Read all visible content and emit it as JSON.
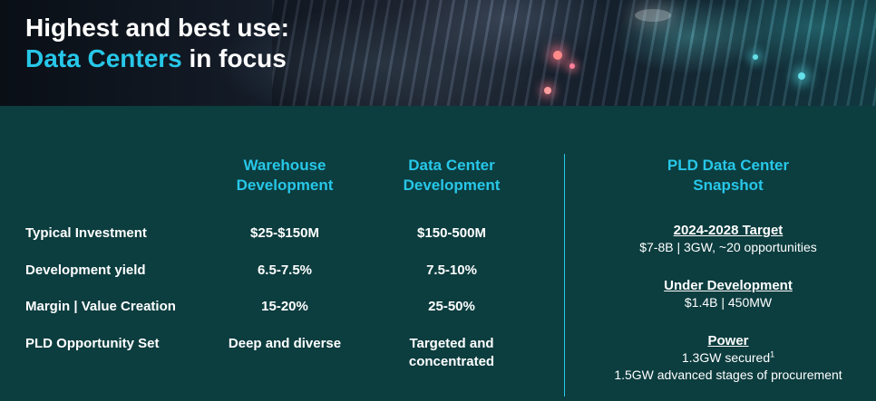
{
  "header": {
    "title_line1": "Highest and best use:",
    "title_accent": "Data Centers",
    "title_rest": " in focus"
  },
  "columns": {
    "warehouse": [
      "Warehouse",
      "Development"
    ],
    "datacenter": [
      "Data Center",
      "Development"
    ]
  },
  "rows": [
    {
      "label": "Typical Investment",
      "warehouse": [
        "$25-$150M"
      ],
      "datacenter": [
        "$150-500M"
      ]
    },
    {
      "label": "Development yield",
      "warehouse": [
        "6.5-7.5%"
      ],
      "datacenter": [
        "7.5-10%"
      ]
    },
    {
      "label": "Margin | Value Creation",
      "warehouse": [
        "15-20%"
      ],
      "datacenter": [
        "25-50%"
      ]
    },
    {
      "label": "PLD Opportunity Set",
      "warehouse": [
        "Deep and diverse"
      ],
      "datacenter": [
        "Targeted and",
        "concentrated"
      ]
    }
  ],
  "snapshot": {
    "title": [
      "PLD Data Center",
      "Snapshot"
    ],
    "target": {
      "head": "2024-2028 Target",
      "line": "$7-8B | 3GW, ~20 opportunities"
    },
    "under_development": {
      "head": "Under Development",
      "line": "$1.4B | 450MW"
    },
    "power": {
      "head": "Power",
      "line1": "1.3GW secured",
      "footnote": "1",
      "line2": "1.5GW advanced stages of procurement"
    }
  }
}
